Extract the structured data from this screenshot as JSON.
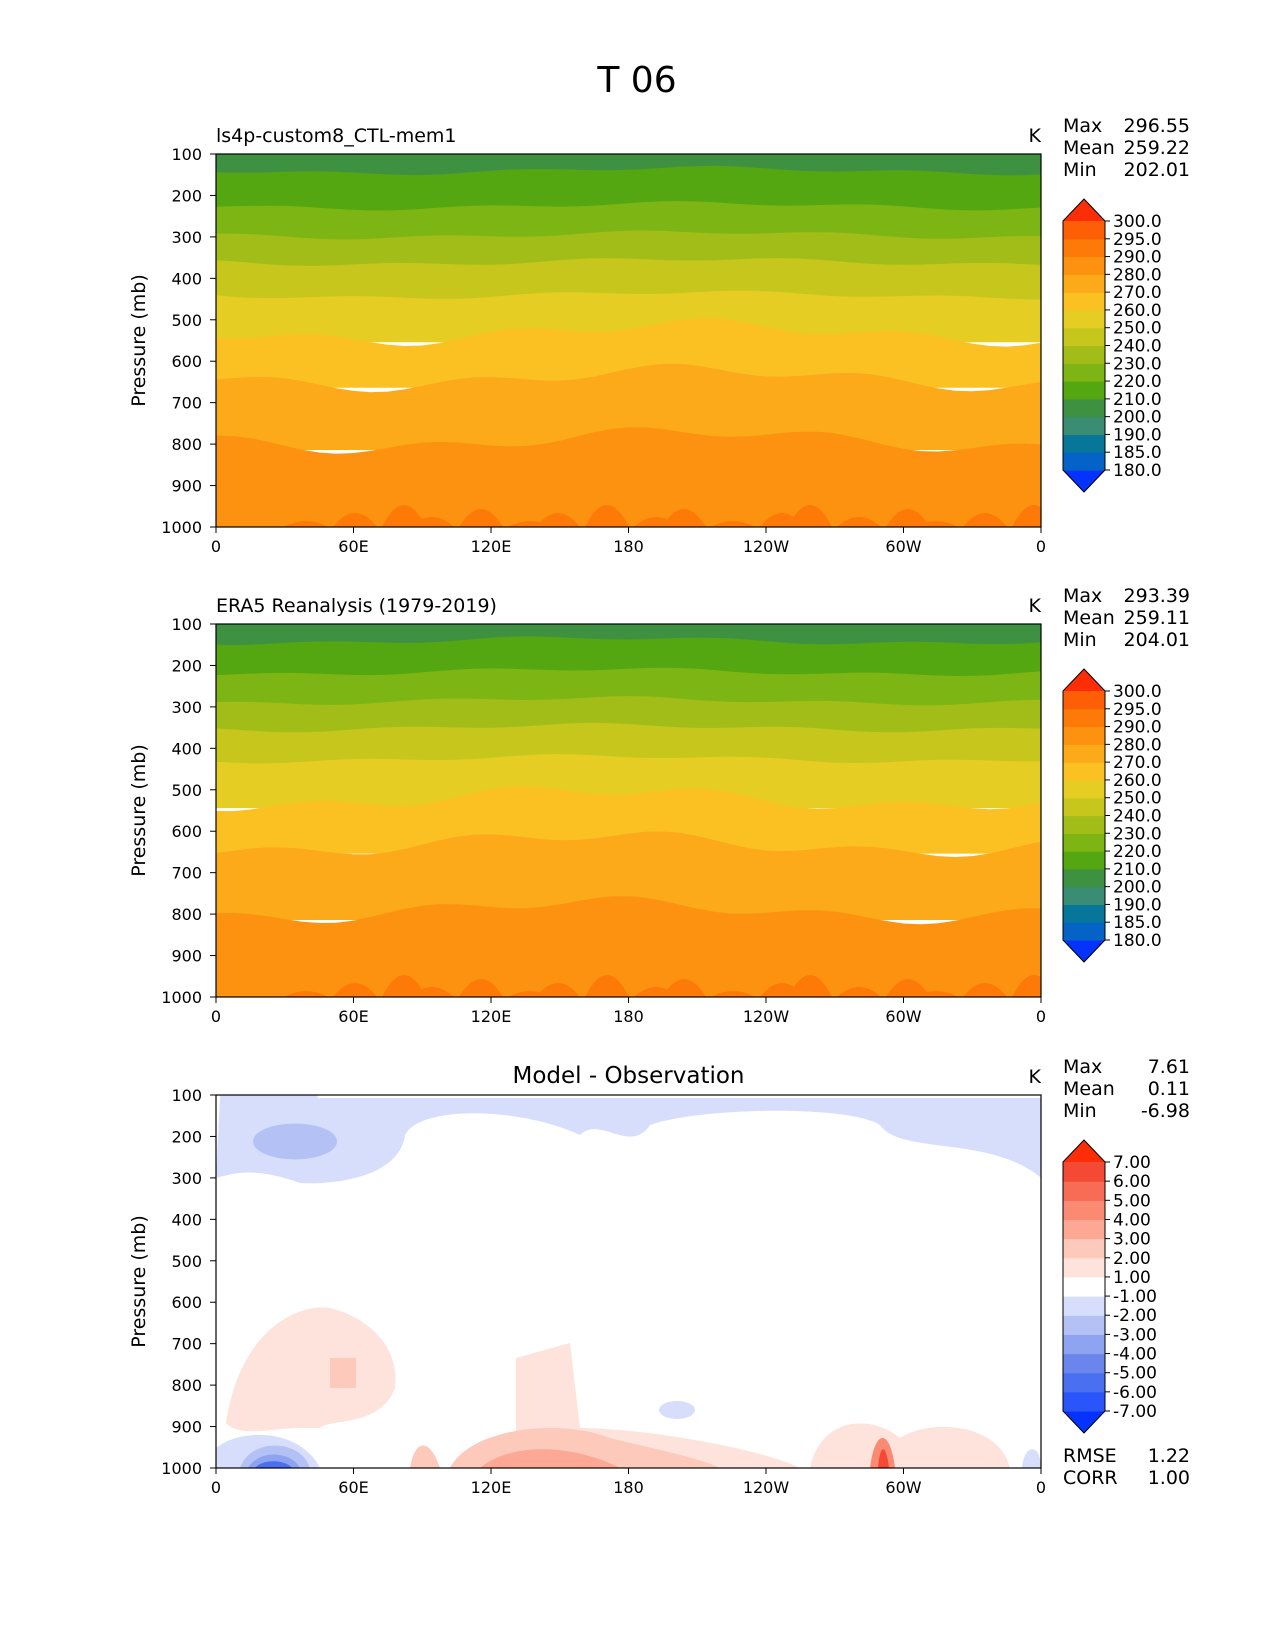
{
  "figure": {
    "title": "T 06"
  },
  "chart_data": [
    {
      "type": "contour",
      "title": "ls4p-custom8_CTL-mem1",
      "units": "K",
      "xlabel": "",
      "ylabel": "Pressure (mb)",
      "x_ticks": [
        "0",
        "60E",
        "120E",
        "180",
        "120W",
        "60W",
        "0"
      ],
      "y_ticks": [
        "100",
        "200",
        "300",
        "400",
        "500",
        "600",
        "700",
        "800",
        "900",
        "1000"
      ],
      "ylim": [
        1000,
        100
      ],
      "stats": [
        {
          "label": "Max",
          "value": "296.55"
        },
        {
          "label": "Mean",
          "value": "259.22"
        },
        {
          "label": "Min",
          "value": "202.01"
        }
      ],
      "colorbar_levels": [
        "180.0",
        "185.0",
        "190.0",
        "200.0",
        "210.0",
        "220.0",
        "230.0",
        "240.0",
        "250.0",
        "260.0",
        "270.0",
        "280.0",
        "290.0",
        "295.0",
        "300.0"
      ],
      "colorbar_colors": [
        "#0432ff",
        "#0563c8",
        "#06779a",
        "#3a8d73",
        "#3f9142",
        "#54a711",
        "#7cb514",
        "#a2bd18",
        "#c6c61c",
        "#e6cd23",
        "#fbc123",
        "#fca91a",
        "#fd9210",
        "#fd7a09",
        "#fd5e06",
        "#fd2d05"
      ],
      "bands": [
        {
          "from": 100,
          "to": 140,
          "color": "#3f9142"
        },
        {
          "from": 140,
          "to": 225,
          "color": "#54a711"
        },
        {
          "from": 225,
          "to": 295,
          "color": "#7cb514"
        },
        {
          "from": 295,
          "to": 360,
          "color": "#a2bd18"
        },
        {
          "from": 360,
          "to": 440,
          "color": "#c6c61c"
        },
        {
          "from": 440,
          "to": 530,
          "color": "#e6cd23"
        },
        {
          "from": 530,
          "to": 640,
          "color": "#fbc123"
        },
        {
          "from": 640,
          "to": 790,
          "color": "#fca91a"
        },
        {
          "from": 790,
          "to": 1000,
          "color": "#fd9210"
        }
      ]
    },
    {
      "type": "contour",
      "title": "ERA5 Reanalysis (1979-2019)",
      "units": "K",
      "xlabel": "",
      "ylabel": "Pressure (mb)",
      "x_ticks": [
        "0",
        "60E",
        "120E",
        "180",
        "120W",
        "60W",
        "0"
      ],
      "y_ticks": [
        "100",
        "200",
        "300",
        "400",
        "500",
        "600",
        "700",
        "800",
        "900",
        "1000"
      ],
      "ylim": [
        1000,
        100
      ],
      "stats": [
        {
          "label": "Max",
          "value": "293.39"
        },
        {
          "label": "Mean",
          "value": "259.11"
        },
        {
          "label": "Min",
          "value": "204.01"
        }
      ],
      "colorbar_levels": [
        "180.0",
        "185.0",
        "190.0",
        "200.0",
        "210.0",
        "220.0",
        "230.0",
        "240.0",
        "250.0",
        "260.0",
        "270.0",
        "280.0",
        "290.0",
        "295.0",
        "300.0"
      ],
      "colorbar_colors": [
        "#0432ff",
        "#0563c8",
        "#06779a",
        "#3a8d73",
        "#3f9142",
        "#54a711",
        "#7cb514",
        "#a2bd18",
        "#c6c61c",
        "#e6cd23",
        "#fbc123",
        "#fca91a",
        "#fd9210",
        "#fd7a09",
        "#fd5e06",
        "#fd2d05"
      ],
      "bands": [
        {
          "from": 100,
          "to": 140,
          "color": "#3f9142"
        },
        {
          "from": 140,
          "to": 215,
          "color": "#54a711"
        },
        {
          "from": 215,
          "to": 285,
          "color": "#7cb514"
        },
        {
          "from": 285,
          "to": 350,
          "color": "#a2bd18"
        },
        {
          "from": 350,
          "to": 425,
          "color": "#c6c61c"
        },
        {
          "from": 425,
          "to": 520,
          "color": "#e6cd23"
        },
        {
          "from": 520,
          "to": 630,
          "color": "#fbc123"
        },
        {
          "from": 630,
          "to": 790,
          "color": "#fca91a"
        },
        {
          "from": 790,
          "to": 1000,
          "color": "#fd9210"
        }
      ]
    },
    {
      "type": "contour",
      "title": "Model - Observation",
      "units": "K",
      "xlabel": "",
      "ylabel": "Pressure (mb)",
      "x_ticks": [
        "0",
        "60E",
        "120E",
        "180",
        "120W",
        "60W",
        "0"
      ],
      "y_ticks": [
        "100",
        "200",
        "300",
        "400",
        "500",
        "600",
        "700",
        "800",
        "900",
        "1000"
      ],
      "ylim": [
        1000,
        100
      ],
      "stats": [
        {
          "label": "Max",
          "value": "7.61"
        },
        {
          "label": "Mean",
          "value": "0.11"
        },
        {
          "label": "Min",
          "value": "-6.98"
        }
      ],
      "extra_stats": [
        {
          "label": "RMSE",
          "value": "1.22"
        },
        {
          "label": "CORR",
          "value": "1.00"
        }
      ],
      "colorbar_levels": [
        "-7.00",
        "-6.00",
        "-5.00",
        "-4.00",
        "-3.00",
        "-2.00",
        "-1.00",
        "1.00",
        "2.00",
        "3.00",
        "4.00",
        "5.00",
        "6.00",
        "7.00"
      ],
      "colorbar_colors": [
        "#0432ff",
        "#2a55fb",
        "#4a6ff0",
        "#6a86ec",
        "#8ea4f0",
        "#b4c1f5",
        "#d7defb",
        "#ffffff",
        "#fde3dc",
        "#fcc9bb",
        "#fca895",
        "#fb8a73",
        "#f86b55",
        "#f44a35",
        "#fd2d05"
      ],
      "bands": []
    }
  ]
}
